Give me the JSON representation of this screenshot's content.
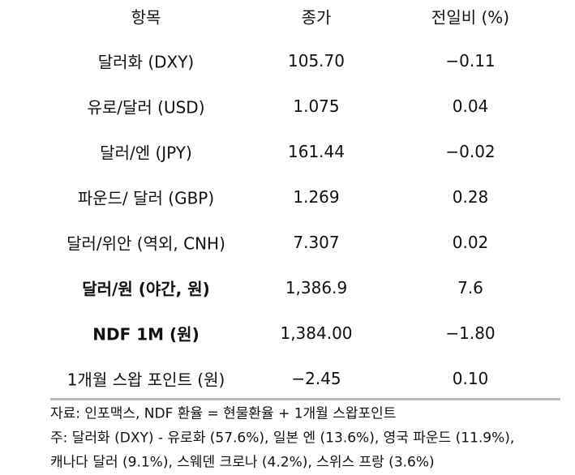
{
  "table": {
    "header": [
      "항목",
      "종가",
      "전일비 (%)"
    ],
    "rows": [
      [
        "달러화 (DXY)",
        "105.70",
        "−0.11"
      ],
      [
        "유로/달러 (USD)",
        "1.075",
        "0.04"
      ],
      [
        "달러/엔 (JPY)",
        "161.44",
        "−0.02"
      ],
      [
        "파운드/ 달러 (GBP)",
        "1.269",
        "0.28"
      ],
      [
        "달러/위안 (역외, CNH)",
        "7.307",
        "0.02"
      ],
      [
        "달러/원 (야간, 원)",
        "1,386.9",
        "7.6"
      ],
      [
        "NDF 1M (원)",
        "1,384.00",
        "−1.80"
      ],
      [
        "1개월 스왑 포인트 (원)",
        "−2.45",
        "0.10"
      ]
    ],
    "bold_rows": [
      5,
      6
    ]
  },
  "notes": [
    "자료: 인포맥스, NDF 환율 = 현물환율 + 1개월 스왑포인트",
    "주: 달러화 (DXY) - 유로화 (57.6%), 일본 엔 (13.6%), 영국 파운드 (11.9%),",
    "캐나다 달러 (9.1%), 스웨덴 크로나 (4.2%), 스위스 프랑 (3.6%)"
  ]
}
